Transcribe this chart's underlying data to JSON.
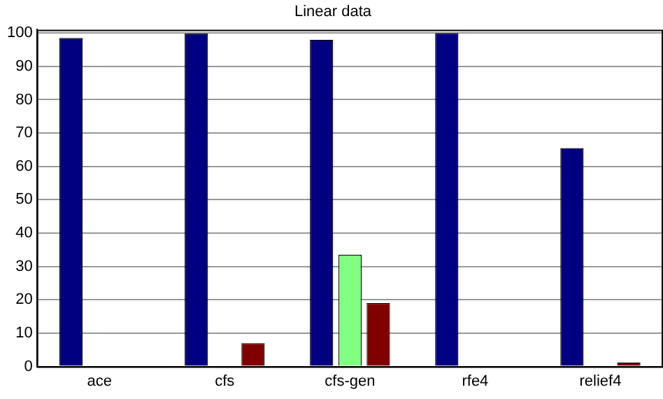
{
  "chart_data": {
    "type": "bar",
    "title": "Linear data",
    "categories": [
      "ace",
      "cfs",
      "cfs-gen",
      "rfe4",
      "relief4"
    ],
    "series": [
      {
        "color": "#000080",
        "values": [
          98.5,
          99.8,
          98,
          100,
          65.5
        ]
      },
      {
        "color": "#80ff80",
        "values": [
          0,
          0,
          33.5,
          0,
          0
        ]
      },
      {
        "color": "#800000",
        "values": [
          0,
          7,
          19,
          0,
          1.2
        ]
      }
    ],
    "ylim": [
      0,
      101
    ],
    "yticks": [
      0,
      10,
      20,
      30,
      40,
      50,
      60,
      70,
      80,
      90,
      100
    ],
    "grid": "y",
    "legend": false
  }
}
